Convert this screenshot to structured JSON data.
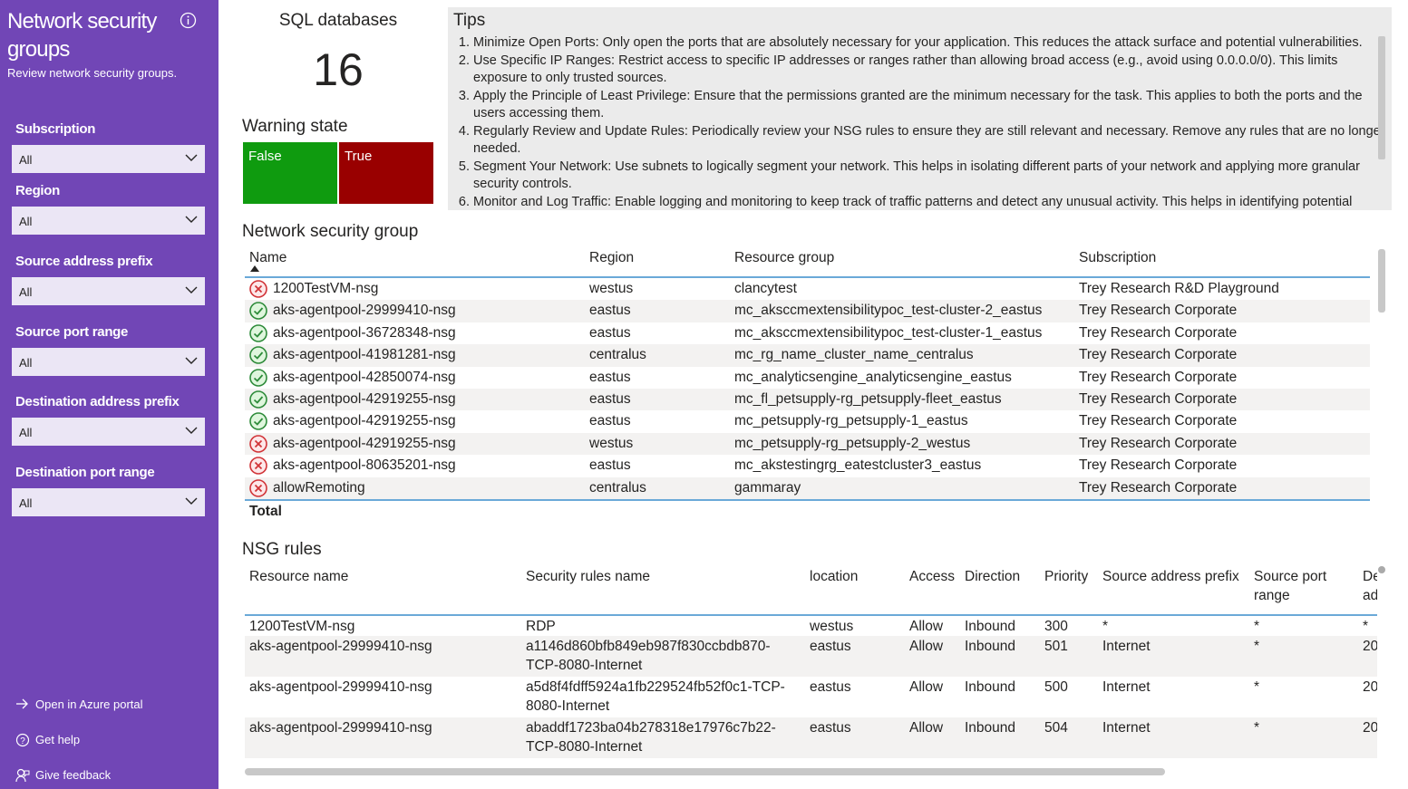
{
  "sidebar": {
    "title": "Network security groups",
    "subtitle": "Review network security groups.",
    "filters": [
      {
        "label": "Subscription",
        "value": "All"
      },
      {
        "label": "Region",
        "value": "All"
      },
      {
        "label": "Source address prefix",
        "value": "All"
      },
      {
        "label": "Source port range",
        "value": "All"
      },
      {
        "label": "Destination address prefix",
        "value": "All"
      },
      {
        "label": "Destination port range",
        "value": "All"
      }
    ],
    "links": [
      "Open in Azure portal",
      "Get help",
      "Give feedback"
    ]
  },
  "sql": {
    "title": "SQL databases",
    "value": 16
  },
  "warning": {
    "title": "Warning state",
    "tiles": [
      {
        "label": "False",
        "color": "#0f9b0f"
      },
      {
        "label": "True",
        "color": "#990000"
      }
    ]
  },
  "tips": {
    "title": "Tips",
    "items": [
      "Minimize Open Ports: Only open the ports that are absolutely necessary for your application. This reduces the attack surface and potential vulnerabilities.",
      "Use Specific IP Ranges: Restrict access to specific IP addresses or ranges rather than allowing broad access (e.g., avoid using 0.0.0.0/0). This limits exposure to only trusted sources.",
      "Apply the Principle of Least Privilege: Ensure that the permissions granted are the minimum necessary for the task. This applies to both the ports and the users accessing them.",
      "Regularly Review and Update Rules: Periodically review your NSG rules to ensure they are still relevant and necessary. Remove any rules that are no longer needed.",
      "Segment Your Network: Use subnets to logically segment your network. This helps in isolating different parts of your network and applying more granular security controls.",
      "Monitor and Log Traffic: Enable logging and monitoring to keep track of traffic patterns and detect any unusual activity. This helps in identifying potential"
    ]
  },
  "nsg_table": {
    "title": "Network security group",
    "columns": [
      "Name",
      "Region",
      "Resource group",
      "Subscription"
    ],
    "rows": [
      {
        "status": "error",
        "cells": [
          "1200TestVM-nsg",
          "westus",
          "clancytest",
          "Trey Research R&D Playground"
        ]
      },
      {
        "status": "ok",
        "cells": [
          "aks-agentpool-29999410-nsg",
          "eastus",
          "mc_aksccmextensibilitypoc_test-cluster-2_eastus",
          "Trey Research Corporate"
        ]
      },
      {
        "status": "ok",
        "cells": [
          "aks-agentpool-36728348-nsg",
          "eastus",
          "mc_aksccmextensibilitypoc_test-cluster-1_eastus",
          "Trey Research Corporate"
        ]
      },
      {
        "status": "ok",
        "cells": [
          "aks-agentpool-41981281-nsg",
          "centralus",
          "mc_rg_name_cluster_name_centralus",
          "Trey Research Corporate"
        ]
      },
      {
        "status": "ok",
        "cells": [
          "aks-agentpool-42850074-nsg",
          "eastus",
          "mc_analyticsengine_analyticsengine_eastus",
          "Trey Research Corporate"
        ]
      },
      {
        "status": "ok",
        "cells": [
          "aks-agentpool-42919255-nsg",
          "eastus",
          "mc_fl_petsupply-rg_petsupply-fleet_eastus",
          "Trey Research Corporate"
        ]
      },
      {
        "status": "ok",
        "cells": [
          "aks-agentpool-42919255-nsg",
          "eastus",
          "mc_petsupply-rg_petsupply-1_eastus",
          "Trey Research Corporate"
        ]
      },
      {
        "status": "error",
        "cells": [
          "aks-agentpool-42919255-nsg",
          "westus",
          "mc_petsupply-rg_petsupply-2_westus",
          "Trey Research Corporate"
        ]
      },
      {
        "status": "error",
        "cells": [
          "aks-agentpool-80635201-nsg",
          "eastus",
          "mc_akstestingrg_eatestcluster3_eastus",
          "Trey Research Corporate"
        ]
      },
      {
        "status": "error",
        "cells": [
          "allowRemoting",
          "centralus",
          "gammaray",
          "Trey Research Corporate"
        ]
      }
    ],
    "total": "Total"
  },
  "rules_table": {
    "title": "NSG rules",
    "columns": [
      "Resource name",
      "Security rules name",
      "location",
      "Access",
      "Direction",
      "Priority",
      "Source address prefix",
      "Source port range",
      "Destination address prefix"
    ],
    "rows": [
      [
        "1200TestVM-nsg",
        "RDP",
        "westus",
        "Allow",
        "Inbound",
        300,
        "*",
        "*",
        "*"
      ],
      [
        "aks-agentpool-29999410-nsg",
        "a1146d860bfb849eb987f830ccbdb870-TCP-8080-Internet",
        "eastus",
        "Allow",
        "Inbound",
        501,
        "Internet",
        "*",
        "20"
      ],
      [
        "aks-agentpool-29999410-nsg",
        "a5d8f4fdff5924a1fb229524fb52f0c1-TCP-8080-Internet",
        "eastus",
        "Allow",
        "Inbound",
        500,
        "Internet",
        "*",
        "20"
      ],
      [
        "aks-agentpool-29999410-nsg",
        "abaddf1723ba04b278318e17976c7b22-TCP-8080-Internet",
        "eastus",
        "Allow",
        "Inbound",
        504,
        "Internet",
        "*",
        "20"
      ]
    ]
  }
}
